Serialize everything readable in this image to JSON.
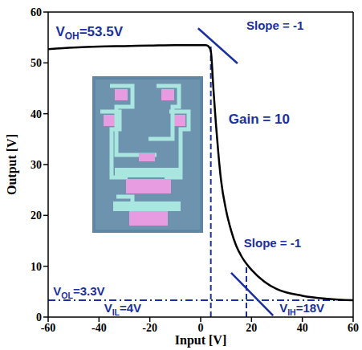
{
  "chart_data": {
    "type": "line",
    "x_label": "Input [V]",
    "y_label": "Output [V]",
    "xlim": [
      -60,
      60
    ],
    "ylim": [
      0,
      60
    ],
    "xticks": [
      -60,
      -40,
      -20,
      0,
      20,
      40,
      60
    ],
    "yticks": [
      0,
      10,
      20,
      30,
      40,
      50,
      60
    ],
    "grid": false,
    "color": "#000000",
    "x": [
      -60,
      -50,
      -40,
      -30,
      -20,
      -10,
      0,
      2,
      3,
      4,
      5,
      6,
      7,
      8,
      10,
      12,
      14,
      16,
      18,
      20,
      25,
      30,
      40,
      50,
      60
    ],
    "values": [
      52.7,
      53.0,
      53.2,
      53.3,
      53.4,
      53.5,
      53.5,
      53.5,
      53.3,
      52.3,
      45,
      38,
      32,
      27,
      21,
      17,
      14,
      12,
      10.5,
      9.3,
      7,
      5.5,
      4.2,
      3.6,
      3.3
    ],
    "annotations": [
      {
        "text": "VOH=53.5V"
      },
      {
        "text": "Slope = -1",
        "segment": [
          [
            -1,
            56.8
          ],
          [
            14.5,
            49.9
          ]
        ]
      },
      {
        "text": "Gain = 10"
      },
      {
        "text": "Slope = -1",
        "segment": [
          [
            12,
            8.7
          ],
          [
            28.5,
            0.3
          ]
        ]
      },
      {
        "text": "VOL=3.3V",
        "hline": 3.3
      },
      {
        "text": "VIL=4V",
        "vline": 4,
        "vline_top": 53.3
      },
      {
        "text": "VIH=18V",
        "vline": 18,
        "vline_top": 10
      }
    ]
  }
}
